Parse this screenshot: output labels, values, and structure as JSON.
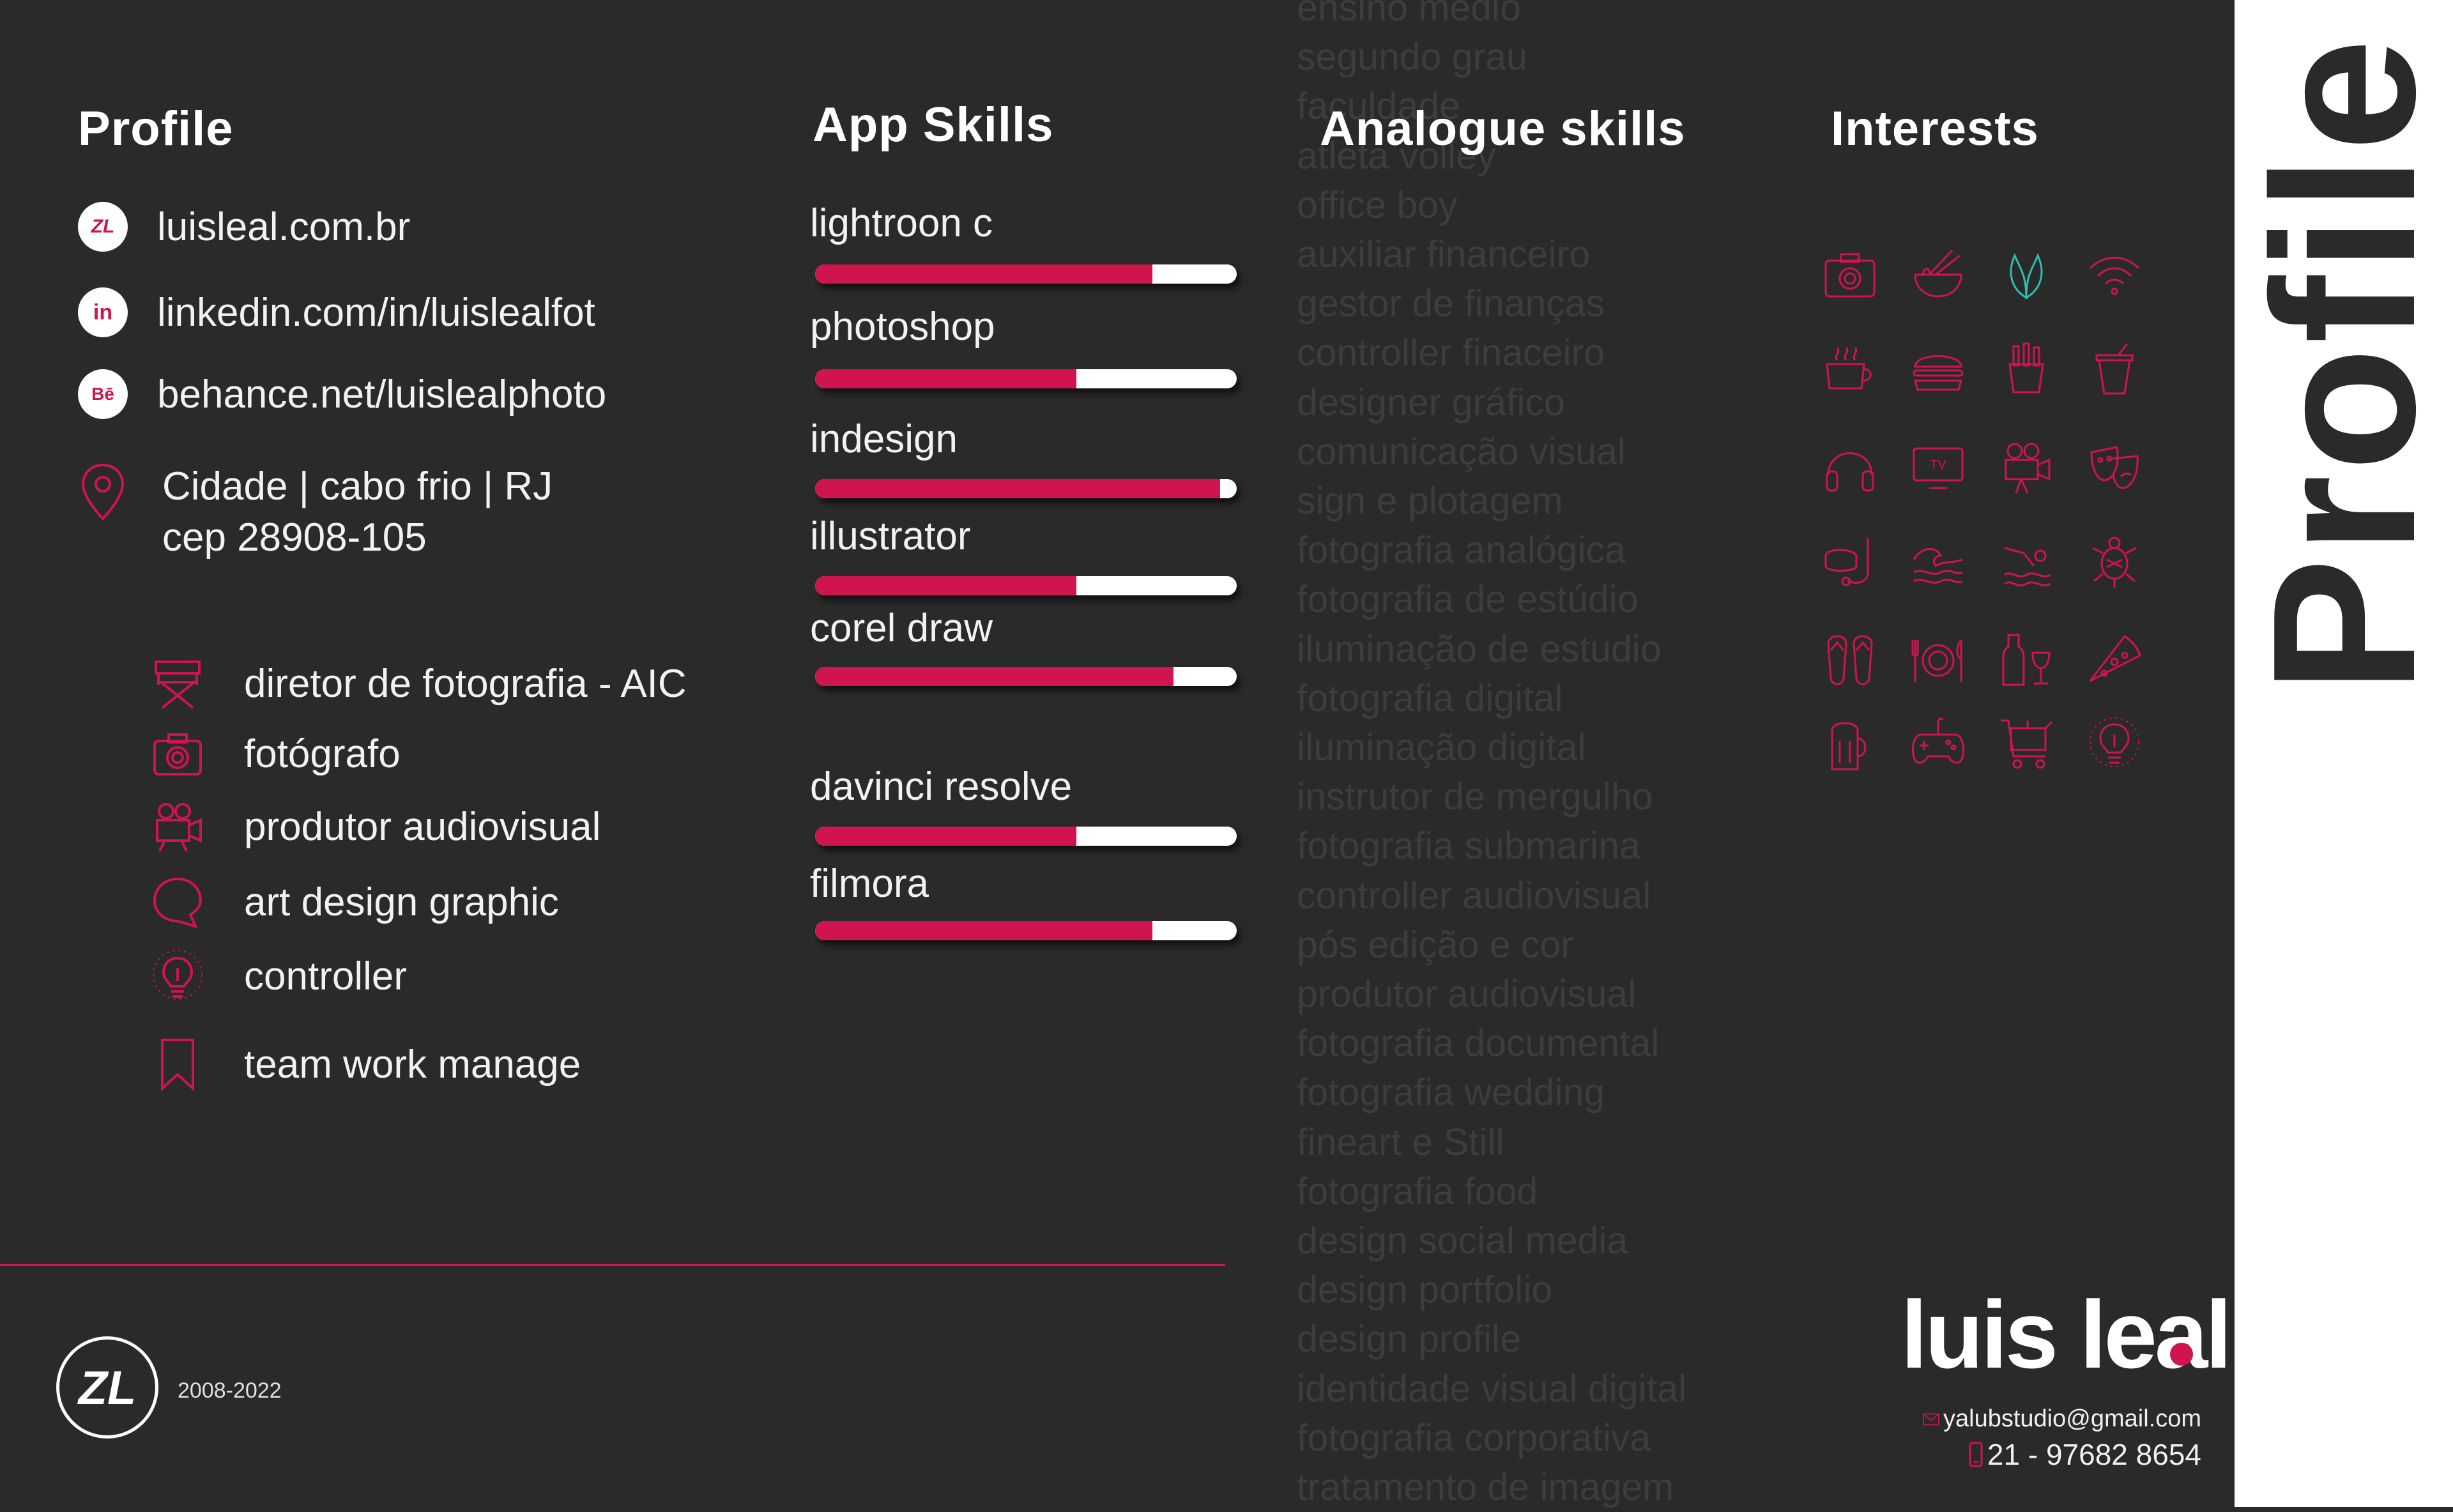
{
  "colors": {
    "background": "#2a2a2a",
    "accent": "#d0144d",
    "teal": "#2ac0b4",
    "ghost_text": "#3d3d3d"
  },
  "headings": {
    "profile": "Profile",
    "app_skills": "App Skills",
    "analogue_skills": "Analogue skills",
    "interests": "Interests"
  },
  "links": [
    {
      "icon": "logo-icon",
      "label": "luisleal.com.br"
    },
    {
      "icon": "linkedin-icon",
      "label": "linkedin.com/in/luislealfot"
    },
    {
      "icon": "behance-icon",
      "label": "behance.net/luislealphoto"
    }
  ],
  "address": {
    "line1": "Cidade | cabo frio | RJ",
    "line2": "cep 28908-105"
  },
  "roles": [
    {
      "icon": "director-chair-icon",
      "label": "diretor de fotografia - AIC"
    },
    {
      "icon": "camera-icon",
      "label": "fotógrafo"
    },
    {
      "icon": "video-camera-icon",
      "label": "produtor audiovisual"
    },
    {
      "icon": "speech-bubble-icon",
      "label": "art design graphic"
    },
    {
      "icon": "lightbulb-icon",
      "label": "controller"
    },
    {
      "icon": "bookmark-icon",
      "label": "team work manage"
    }
  ],
  "app_skills": [
    {
      "name": "lightroon c",
      "level": 0.8
    },
    {
      "name": "photoshop",
      "level": 0.62
    },
    {
      "name": "indesign",
      "level": 0.96
    },
    {
      "name": "illustrator",
      "level": 0.62
    },
    {
      "name": "corel draw",
      "level": 0.85
    },
    {
      "name": "davinci resolve",
      "level": 0.62
    },
    {
      "name": "filmora",
      "level": 0.8
    }
  ],
  "analogue_skills": [
    "ensino médio",
    "segundo grau",
    "faculdade",
    "atleta volley",
    "office boy",
    "auxiliar financeiro",
    "gestor de finanças",
    "controller finaceiro",
    "designer gráfico",
    "comunicação visual",
    "sign e plotagem",
    "fotografia analógica",
    "fotografia de estúdio",
    "iluminação de estudio",
    "fotografia digital",
    "iluminação digital",
    "instrutor de mergulho",
    "fotografia submarina",
    "controller audiovisual",
    "pós edição e cor",
    "produtor audiovisual",
    "fotografia documental",
    "fotografia wedding",
    "fineart e Still",
    "fotografia food",
    "design social media",
    "design portfolio",
    "design profile",
    "identidade visual digital",
    "fotografia corporativa",
    "tratamento de imagem"
  ],
  "interests": [
    "camera-icon",
    "noodles-icon",
    "leaf-icon",
    "wifi-icon",
    "coffee-icon",
    "burger-icon",
    "fries-icon",
    "drink-icon",
    "headphones-icon",
    "tv-icon",
    "video-camera-icon",
    "theater-masks-icon",
    "diving-mask-icon",
    "wave-icon",
    "swimmer-icon",
    "turtle-icon",
    "flip-flops-icon",
    "plate-cutlery-icon",
    "wine-icon",
    "pizza-icon",
    "beer-icon",
    "gamepad-icon",
    "shopping-cart-icon",
    "lightbulb-icon"
  ],
  "tv_label": "TV",
  "footer": {
    "years": "2008-2022",
    "logo_text": "ZL"
  },
  "brand": {
    "name_part1": "luis le",
    "name_part2": "l",
    "email": "yalubstudio@gmail.com",
    "phone": "21 - 97682 8654"
  },
  "sidebar": {
    "title": "Profile"
  }
}
